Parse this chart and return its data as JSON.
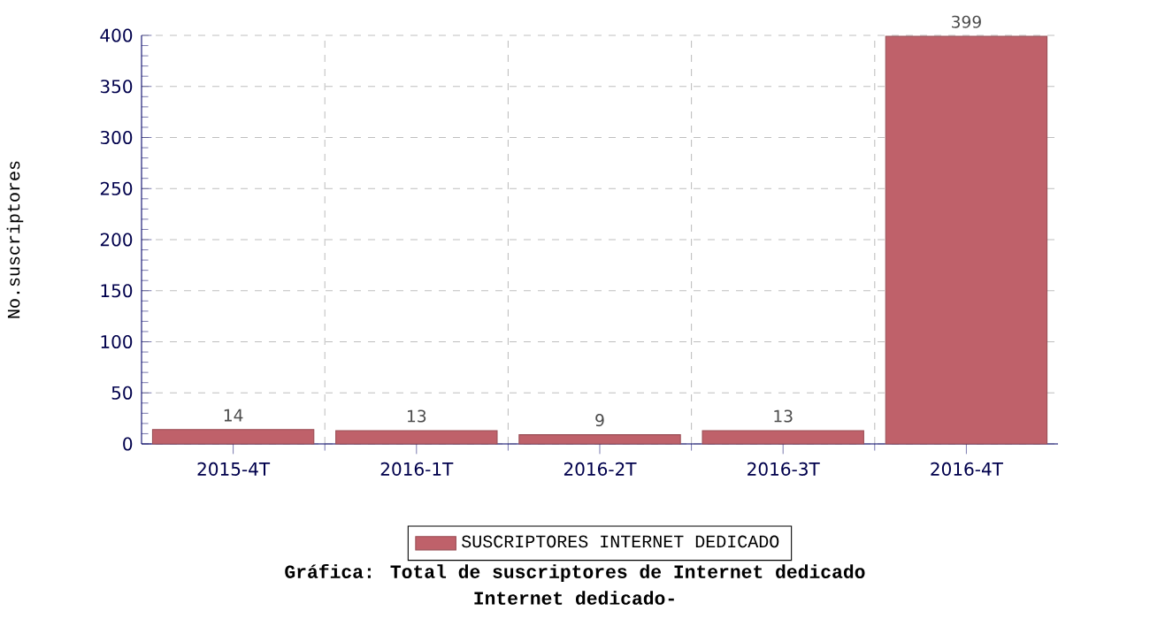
{
  "chart_data": {
    "type": "bar",
    "title": "Gráfica: Total de suscriptores de Internet dedicado",
    "subtitle": "Internet dedicado-",
    "ylabel": "No.suscriptores",
    "categories": [
      "2015-4T",
      "2016-1T",
      "2016-2T",
      "2016-3T",
      "2016-4T"
    ],
    "series": [
      {
        "name": "SUSCRIPTORES INTERNET DEDICADO",
        "color": "#bf616a",
        "values": [
          14,
          13,
          9,
          13,
          399
        ]
      }
    ],
    "ylim": [
      0,
      400
    ],
    "yticks": [
      0,
      50,
      100,
      150,
      200,
      250,
      300,
      350,
      400
    ],
    "grid": true,
    "legend": "bottom",
    "data_labels": true
  }
}
